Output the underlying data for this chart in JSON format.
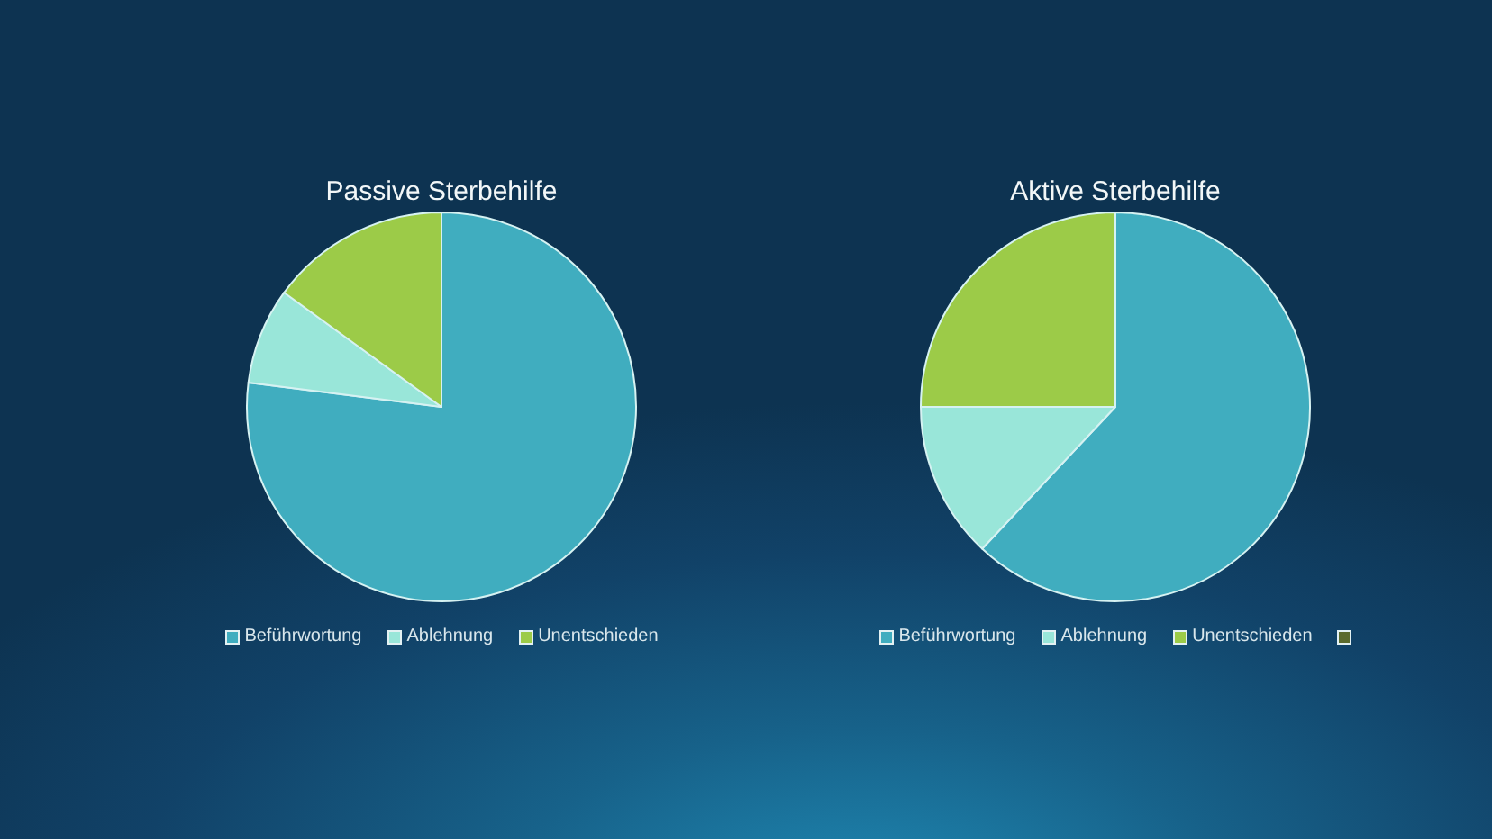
{
  "chart_data": [
    {
      "type": "pie",
      "title": "Passive Sterbehilfe",
      "categories": [
        "Beführwortung",
        "Ablehnung",
        "Unentschieden"
      ],
      "values": [
        77,
        8,
        15
      ],
      "colors": [
        "#40adbf",
        "#99e6d9",
        "#9ccb48"
      ],
      "legend": "bottom"
    },
    {
      "type": "pie",
      "title": "Aktive Sterbehilfe",
      "categories": [
        "Beführwortung",
        "Ablehnung",
        "Unentschieden",
        null
      ],
      "values": [
        62,
        13,
        25,
        0
      ],
      "colors": [
        "#40adbf",
        "#99e6d9",
        "#9ccb48",
        "#5b6b2d"
      ],
      "legend": "bottom"
    }
  ]
}
